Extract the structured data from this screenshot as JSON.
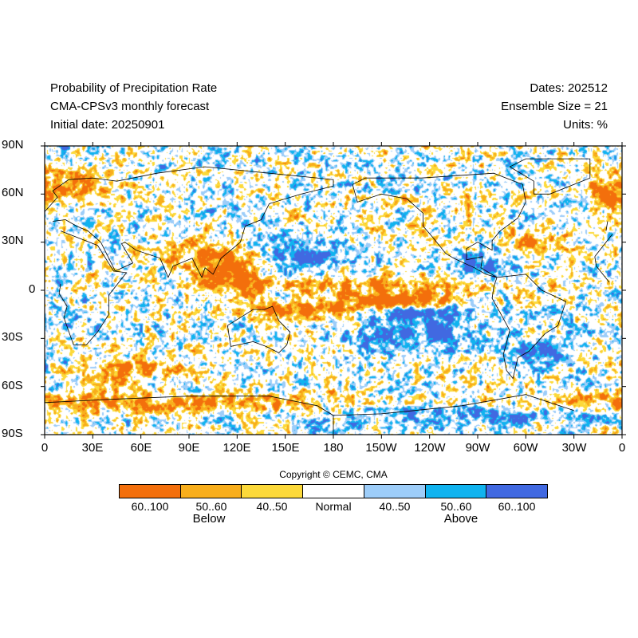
{
  "header": {
    "title": "Probability of Precipitation Rate",
    "subtitle": "CMA-CPSv3 monthly forecast",
    "initial_date": "Initial date: 20250901",
    "dates": "Dates: 202512",
    "ensemble": "Ensemble Size = 21",
    "units": "Units: %"
  },
  "axes": {
    "lat_labels": [
      "90N",
      "60N",
      "30N",
      "0",
      "30S",
      "60S",
      "90S"
    ],
    "lon_labels": [
      "0",
      "30E",
      "60E",
      "90E",
      "120E",
      "150E",
      "180",
      "150W",
      "120W",
      "90W",
      "60W",
      "30W",
      "0"
    ]
  },
  "copyright": "Copyright © CEMC, CMA",
  "legend": {
    "items": [
      {
        "label": "60..100",
        "color": "#f36f0c"
      },
      {
        "label": "50..60",
        "color": "#f8ae1c"
      },
      {
        "label": "40..50",
        "color": "#fcd93a"
      },
      {
        "label": "Normal",
        "color": "#ffffff"
      },
      {
        "label": "40..50",
        "color": "#9dcdf9"
      },
      {
        "label": "50..60",
        "color": "#10b3ef"
      },
      {
        "label": "60..100",
        "color": "#4169e1"
      }
    ],
    "below_label": "Below",
    "above_label": "Above"
  },
  "map": {
    "type": "global probability map",
    "projection": "cylindrical equidistant",
    "lon_range": [
      0,
      360
    ],
    "lat_range": [
      -90,
      90
    ]
  }
}
